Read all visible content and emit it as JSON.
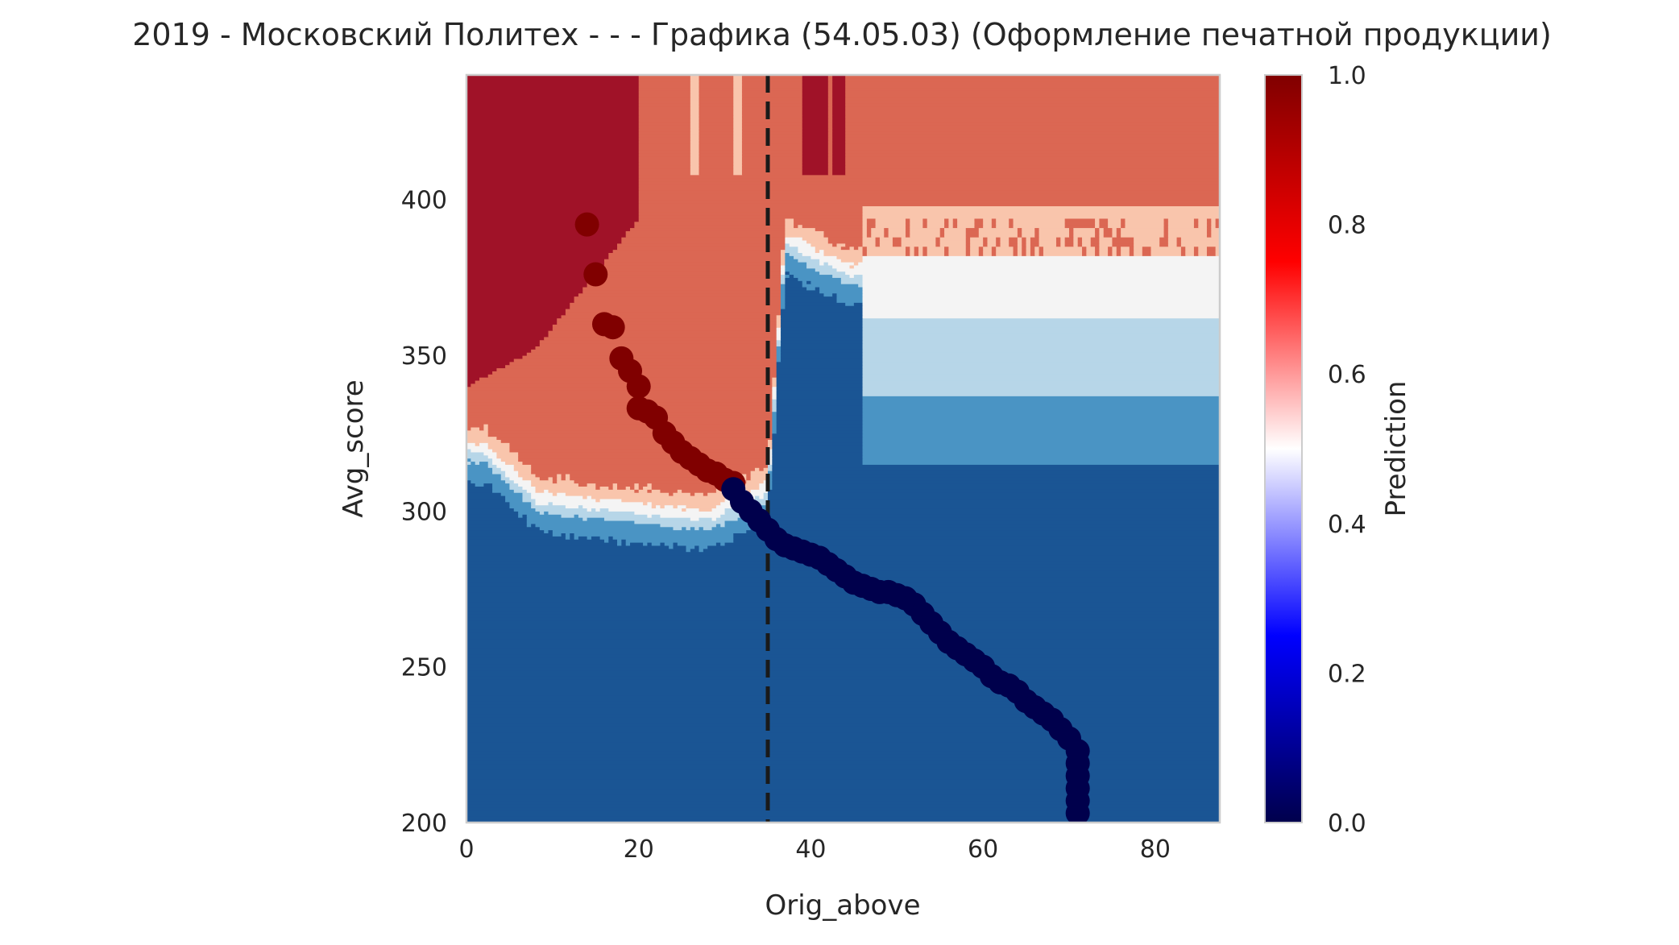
{
  "chart_data": {
    "type": "heatmap",
    "title": "2019 - Московский Политех - - - Графика (54.05.03) (Оформление печатной продукции)",
    "xlabel": "Orig_above",
    "ylabel": "Avg_score",
    "xlim": [
      0,
      87.5
    ],
    "ylim": [
      200,
      440
    ],
    "x_ticks": [
      0,
      20,
      40,
      60,
      80
    ],
    "x_tick_labels": [
      "0",
      "20",
      "40",
      "60",
      "80"
    ],
    "y_ticks": [
      200,
      250,
      300,
      350,
      400
    ],
    "y_tick_labels": [
      "200",
      "250",
      "300",
      "350",
      "400"
    ],
    "threshold_x": 35,
    "grid": false,
    "colormap": "seismic",
    "colorbar": {
      "label": "Prediction",
      "range": [
        0.0,
        1.0
      ],
      "ticks": [
        0.0,
        0.2,
        0.4,
        0.6,
        0.8,
        1.0
      ],
      "tick_labels": [
        "0.0",
        "0.2",
        "0.4",
        "0.6",
        "0.8",
        "1.0"
      ],
      "stops": [
        "#00004c",
        "#0000ff",
        "#ffffff",
        "#ff0000",
        "#800000"
      ]
    },
    "contour_levels": [
      {
        "color": "#1a5594",
        "range": [
          0.0,
          0.2
        ]
      },
      {
        "color": "#4a94c4",
        "range": [
          0.2,
          0.35
        ]
      },
      {
        "color": "#b7d6e8",
        "range": [
          0.35,
          0.45
        ]
      },
      {
        "color": "#f4f4f4",
        "range": [
          0.45,
          0.55
        ]
      },
      {
        "color": "#f9c5ac",
        "range": [
          0.55,
          0.65
        ]
      },
      {
        "color": "#db6753",
        "range": [
          0.65,
          0.85
        ]
      },
      {
        "color": "#a01228",
        "range": [
          0.85,
          1.0
        ]
      }
    ],
    "points": {
      "above_color": "#800000",
      "below_color": "#00004c",
      "above": [
        {
          "x": 14,
          "y": 392
        },
        {
          "x": 15,
          "y": 376
        },
        {
          "x": 16,
          "y": 360
        },
        {
          "x": 17,
          "y": 359
        },
        {
          "x": 18,
          "y": 349
        },
        {
          "x": 19,
          "y": 345
        },
        {
          "x": 20,
          "y": 340
        },
        {
          "x": 20,
          "y": 333
        },
        {
          "x": 21,
          "y": 332
        },
        {
          "x": 22,
          "y": 330
        },
        {
          "x": 23,
          "y": 325
        },
        {
          "x": 24,
          "y": 322
        },
        {
          "x": 25,
          "y": 319
        },
        {
          "x": 26,
          "y": 317
        },
        {
          "x": 27,
          "y": 315
        },
        {
          "x": 28,
          "y": 313
        },
        {
          "x": 29,
          "y": 312
        },
        {
          "x": 30,
          "y": 310
        },
        {
          "x": 31,
          "y": 309
        }
      ],
      "below": [
        {
          "x": 31,
          "y": 307
        },
        {
          "x": 32,
          "y": 303
        },
        {
          "x": 33,
          "y": 300
        },
        {
          "x": 34,
          "y": 297
        },
        {
          "x": 35,
          "y": 294
        },
        {
          "x": 36,
          "y": 291
        },
        {
          "x": 37,
          "y": 289
        },
        {
          "x": 38,
          "y": 288
        },
        {
          "x": 39,
          "y": 287
        },
        {
          "x": 40,
          "y": 286
        },
        {
          "x": 41,
          "y": 285
        },
        {
          "x": 42,
          "y": 283
        },
        {
          "x": 43,
          "y": 281
        },
        {
          "x": 44,
          "y": 279
        },
        {
          "x": 45,
          "y": 277
        },
        {
          "x": 46,
          "y": 276
        },
        {
          "x": 47,
          "y": 275
        },
        {
          "x": 48,
          "y": 274
        },
        {
          "x": 49,
          "y": 274
        },
        {
          "x": 50,
          "y": 273
        },
        {
          "x": 51,
          "y": 272
        },
        {
          "x": 52,
          "y": 270
        },
        {
          "x": 53,
          "y": 267
        },
        {
          "x": 54,
          "y": 264
        },
        {
          "x": 55,
          "y": 261
        },
        {
          "x": 56,
          "y": 258
        },
        {
          "x": 57,
          "y": 256
        },
        {
          "x": 58,
          "y": 254
        },
        {
          "x": 59,
          "y": 252
        },
        {
          "x": 60,
          "y": 250
        },
        {
          "x": 61,
          "y": 247
        },
        {
          "x": 62,
          "y": 245
        },
        {
          "x": 63,
          "y": 244
        },
        {
          "x": 64,
          "y": 242
        },
        {
          "x": 65,
          "y": 239
        },
        {
          "x": 66,
          "y": 237
        },
        {
          "x": 67,
          "y": 235
        },
        {
          "x": 68,
          "y": 233
        },
        {
          "x": 69,
          "y": 230
        },
        {
          "x": 70,
          "y": 227
        },
        {
          "x": 71,
          "y": 223
        },
        {
          "x": 71,
          "y": 219
        },
        {
          "x": 71,
          "y": 215
        },
        {
          "x": 71,
          "y": 211
        },
        {
          "x": 71,
          "y": 207
        },
        {
          "x": 71,
          "y": 203
        }
      ]
    }
  }
}
